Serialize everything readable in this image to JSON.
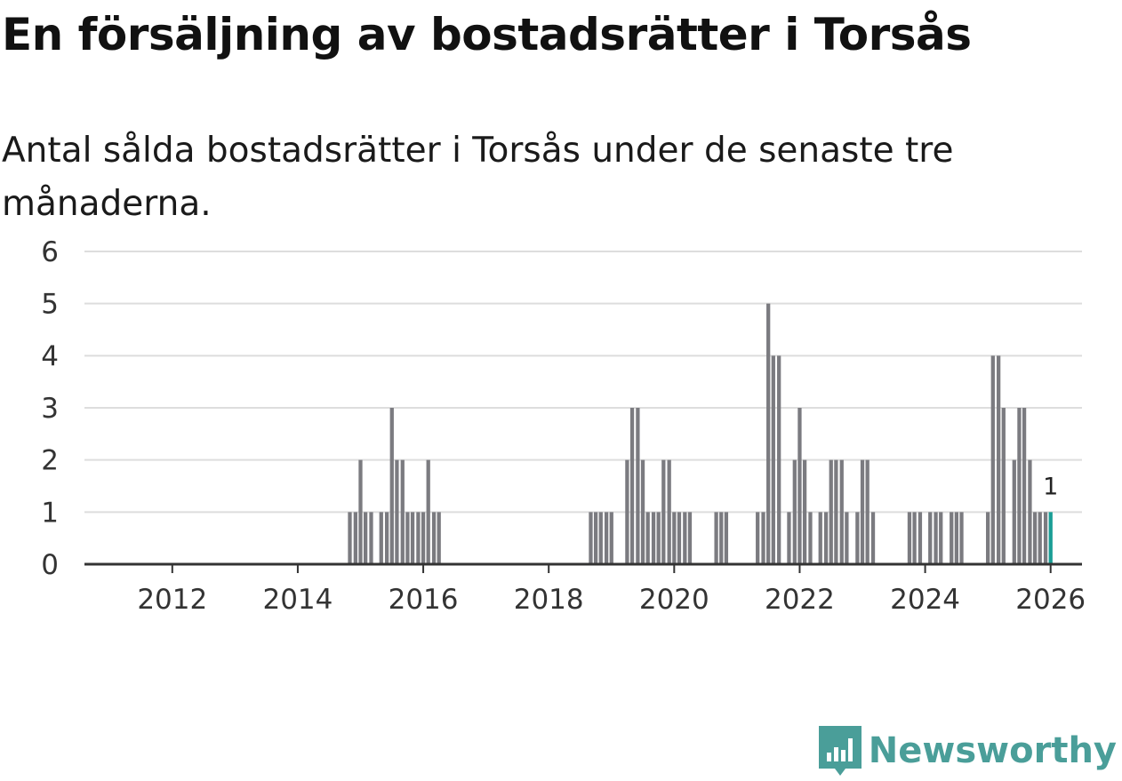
{
  "title": "En försäljning av bostadsrätter i Torsås",
  "subtitle": "Antal sålda bostadsrätter i Torsås under de senaste tre månaderna.",
  "brand": {
    "name": "Newsworthy",
    "color": "#4a9e99"
  },
  "colors": {
    "bar": "#7b7b80",
    "highlight": "#1a9e96",
    "grid": "#dddddd",
    "axis": "#333333"
  },
  "chart_data": {
    "type": "bar",
    "title": "En försäljning av bostadsrätter i Torsås",
    "xlabel": "",
    "ylabel": "",
    "ylim": [
      0,
      6
    ],
    "xlim": [
      2010.6,
      2026.5
    ],
    "y_ticks": [
      0,
      1,
      2,
      3,
      4,
      5,
      6
    ],
    "x_ticks": [
      2012,
      2014,
      2016,
      2018,
      2020,
      2022,
      2024,
      2026
    ],
    "grid": true,
    "series": [
      {
        "name": "Sålda bostadsrätter",
        "points": [
          {
            "x": 2014.83,
            "y": 1
          },
          {
            "x": 2014.92,
            "y": 1
          },
          {
            "x": 2015.0,
            "y": 2
          },
          {
            "x": 2015.08,
            "y": 1
          },
          {
            "x": 2015.17,
            "y": 1
          },
          {
            "x": 2015.33,
            "y": 1
          },
          {
            "x": 2015.42,
            "y": 1
          },
          {
            "x": 2015.5,
            "y": 3
          },
          {
            "x": 2015.58,
            "y": 2
          },
          {
            "x": 2015.67,
            "y": 2
          },
          {
            "x": 2015.75,
            "y": 1
          },
          {
            "x": 2015.83,
            "y": 1
          },
          {
            "x": 2015.92,
            "y": 1
          },
          {
            "x": 2016.0,
            "y": 1
          },
          {
            "x": 2016.08,
            "y": 2
          },
          {
            "x": 2016.17,
            "y": 1
          },
          {
            "x": 2016.25,
            "y": 1
          },
          {
            "x": 2018.67,
            "y": 1
          },
          {
            "x": 2018.75,
            "y": 1
          },
          {
            "x": 2018.83,
            "y": 1
          },
          {
            "x": 2018.92,
            "y": 1
          },
          {
            "x": 2019.0,
            "y": 1
          },
          {
            "x": 2019.25,
            "y": 2
          },
          {
            "x": 2019.33,
            "y": 3
          },
          {
            "x": 2019.42,
            "y": 3
          },
          {
            "x": 2019.5,
            "y": 2
          },
          {
            "x": 2019.58,
            "y": 1
          },
          {
            "x": 2019.67,
            "y": 1
          },
          {
            "x": 2019.75,
            "y": 1
          },
          {
            "x": 2019.83,
            "y": 2
          },
          {
            "x": 2019.92,
            "y": 2
          },
          {
            "x": 2020.0,
            "y": 1
          },
          {
            "x": 2020.08,
            "y": 1
          },
          {
            "x": 2020.17,
            "y": 1
          },
          {
            "x": 2020.25,
            "y": 1
          },
          {
            "x": 2020.67,
            "y": 1
          },
          {
            "x": 2020.75,
            "y": 1
          },
          {
            "x": 2020.83,
            "y": 1
          },
          {
            "x": 2021.33,
            "y": 1
          },
          {
            "x": 2021.42,
            "y": 1
          },
          {
            "x": 2021.5,
            "y": 5
          },
          {
            "x": 2021.58,
            "y": 4
          },
          {
            "x": 2021.67,
            "y": 4
          },
          {
            "x": 2021.83,
            "y": 1
          },
          {
            "x": 2021.92,
            "y": 2
          },
          {
            "x": 2022.0,
            "y": 3
          },
          {
            "x": 2022.08,
            "y": 2
          },
          {
            "x": 2022.17,
            "y": 1
          },
          {
            "x": 2022.33,
            "y": 1
          },
          {
            "x": 2022.42,
            "y": 1
          },
          {
            "x": 2022.5,
            "y": 2
          },
          {
            "x": 2022.58,
            "y": 2
          },
          {
            "x": 2022.67,
            "y": 2
          },
          {
            "x": 2022.75,
            "y": 1
          },
          {
            "x": 2022.92,
            "y": 1
          },
          {
            "x": 2023.0,
            "y": 2
          },
          {
            "x": 2023.08,
            "y": 2
          },
          {
            "x": 2023.17,
            "y": 1
          },
          {
            "x": 2023.75,
            "y": 1
          },
          {
            "x": 2023.83,
            "y": 1
          },
          {
            "x": 2023.92,
            "y": 1
          },
          {
            "x": 2024.08,
            "y": 1
          },
          {
            "x": 2024.17,
            "y": 1
          },
          {
            "x": 2024.25,
            "y": 1
          },
          {
            "x": 2024.42,
            "y": 1
          },
          {
            "x": 2024.5,
            "y": 1
          },
          {
            "x": 2024.58,
            "y": 1
          },
          {
            "x": 2025.0,
            "y": 1
          },
          {
            "x": 2025.08,
            "y": 4
          },
          {
            "x": 2025.17,
            "y": 4
          },
          {
            "x": 2025.25,
            "y": 3
          },
          {
            "x": 2025.42,
            "y": 2
          },
          {
            "x": 2025.5,
            "y": 3
          },
          {
            "x": 2025.58,
            "y": 3
          },
          {
            "x": 2025.67,
            "y": 2
          },
          {
            "x": 2025.75,
            "y": 1
          },
          {
            "x": 2025.83,
            "y": 1
          },
          {
            "x": 2025.92,
            "y": 1
          },
          {
            "x": 2026.0,
            "y": 1,
            "highlight": true
          }
        ]
      }
    ],
    "annotations": [
      {
        "x": 2026.0,
        "y": 1,
        "text": "1"
      }
    ]
  }
}
